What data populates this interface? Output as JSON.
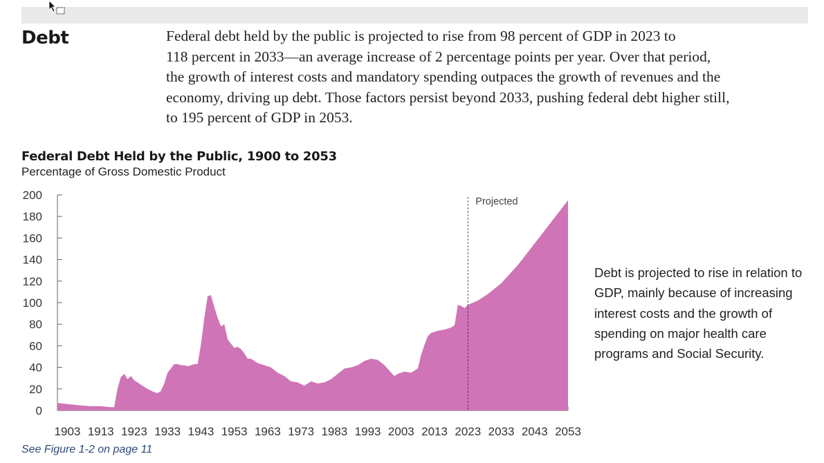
{
  "section": {
    "heading": "Debt",
    "intro": "Federal debt held by the public is projected to rise from 98 percent of GDP in 2023 to\n118 percent in 2033—an average increase of 2 percentage points per year. Over that period,\nthe growth of interest costs and mandatory spending outpaces the growth of revenues and the\neconomy, driving up debt. Those factors persist beyond 2033, pushing federal debt higher still,\nto 195 percent of GDP in 2053."
  },
  "side_note": "Debt is projected to rise in relation to GDP, mainly because of increasing interest costs and the growth of spending on major health care programs and Social Security.",
  "figure_ref": "See Figure 1-2 on page 11",
  "chart_data": {
    "type": "area",
    "title": "Federal Debt Held by the Public, 1900 to 2053",
    "subtitle": "Percentage of Gross Domestic Product",
    "xlabel": "",
    "ylabel": "",
    "xlim": [
      1900,
      2053
    ],
    "ylim": [
      0,
      200
    ],
    "yticks": [
      0,
      20,
      40,
      60,
      80,
      100,
      120,
      140,
      160,
      180,
      200
    ],
    "xticks": [
      1903,
      1913,
      1923,
      1933,
      1943,
      1953,
      1963,
      1973,
      1983,
      1993,
      2003,
      2013,
      2023,
      2033,
      2043,
      2053
    ],
    "grid": false,
    "fill_color": "#cf74b6",
    "annotation": {
      "label": "Projected",
      "x": 2023
    },
    "series": [
      {
        "x": [
          1900,
          1903,
          1906,
          1910,
          1913,
          1916,
          1917,
          1918,
          1919,
          1920,
          1921,
          1922,
          1923,
          1925,
          1927,
          1929,
          1930,
          1931,
          1932,
          1933,
          1934,
          1935,
          1936,
          1937,
          1938,
          1939,
          1940,
          1941,
          1942,
          1943,
          1944,
          1945,
          1946,
          1947,
          1948,
          1949,
          1950,
          1951,
          1952,
          1953,
          1954,
          1955,
          1956,
          1957,
          1958,
          1959,
          1960,
          1962,
          1964,
          1966,
          1968,
          1970,
          1972,
          1974,
          1976,
          1978,
          1980,
          1982,
          1984,
          1986,
          1988,
          1990,
          1992,
          1994,
          1996,
          1998,
          2000,
          2001,
          2002,
          2004,
          2006,
          2008,
          2009,
          2010,
          2011,
          2012,
          2014,
          2016,
          2018,
          2019,
          2020,
          2021,
          2022,
          2023,
          2026,
          2029,
          2033,
          2038,
          2043,
          2048,
          2053
        ],
        "values": [
          7,
          6,
          5,
          4,
          4,
          3,
          3,
          20,
          31,
          34,
          29,
          32,
          28,
          24,
          20,
          17,
          16,
          18,
          25,
          35,
          39,
          43,
          43,
          42,
          42,
          41,
          42,
          43,
          43,
          61,
          85,
          106,
          107,
          96,
          86,
          78,
          80,
          66,
          62,
          58,
          59,
          57,
          53,
          48,
          48,
          46,
          44,
          42,
          40,
          35,
          32,
          27,
          26,
          23,
          27,
          25,
          26,
          29,
          34,
          39,
          40,
          42,
          46,
          48,
          47,
          42,
          35,
          32,
          34,
          36,
          35,
          39,
          52,
          61,
          69,
          72,
          74,
          75,
          77,
          79,
          98,
          97,
          95,
          98,
          102,
          108,
          118,
          135,
          155,
          175,
          195
        ]
      }
    ]
  }
}
